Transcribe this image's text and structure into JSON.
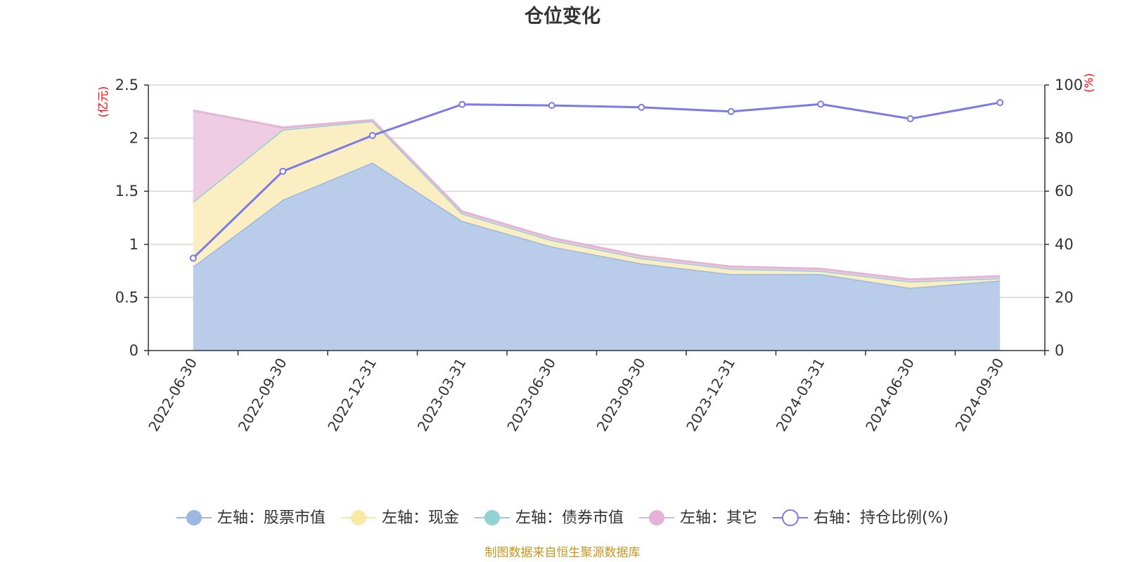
{
  "chart_data": {
    "type": "area",
    "title": "仓位变化",
    "left_axis": {
      "unit": "(亿元)",
      "range": [
        0,
        2.5
      ],
      "ticks": [
        "0",
        "0.5",
        "1",
        "1.5",
        "2",
        "2.5"
      ]
    },
    "right_axis": {
      "unit": "(%)",
      "range": [
        0,
        100
      ],
      "ticks": [
        "0",
        "20",
        "40",
        "60",
        "80",
        "100"
      ]
    },
    "categories": [
      "2022-06-30",
      "2022-09-30",
      "2022-12-31",
      "2023-03-31",
      "2023-06-30",
      "2023-09-30",
      "2023-12-31",
      "2024-03-31",
      "2024-06-30",
      "2024-09-30"
    ],
    "stacked_series": [
      {
        "name": "左轴：股票市值",
        "color": "#9db8e0",
        "fill": "#b9cdea",
        "values": [
          0.79,
          1.42,
          1.77,
          1.22,
          0.98,
          0.82,
          0.72,
          0.72,
          0.59,
          0.66
        ]
      },
      {
        "name": "左轴：现金",
        "color": "#f9e8a6",
        "fill": "#faeec2",
        "values": [
          0.61,
          0.66,
          0.39,
          0.07,
          0.06,
          0.05,
          0.05,
          0.03,
          0.06,
          0.02
        ]
      },
      {
        "name": "左轴：债券市值",
        "color": "#92d2d2",
        "fill": "#b5e1e1",
        "values": [
          0,
          0,
          0,
          0,
          0,
          0,
          0,
          0,
          0,
          0
        ]
      },
      {
        "name": "左轴：其它",
        "color": "#e6b3d6",
        "fill": "#eecde3",
        "values": [
          0.86,
          0.02,
          0.01,
          0.02,
          0.02,
          0.02,
          0.02,
          0.02,
          0.02,
          0.02
        ]
      }
    ],
    "line_series": {
      "name": "右轴：持仓比例(%)",
      "color": "#7b7be8",
      "values": [
        34.8,
        67.5,
        81.0,
        92.7,
        92.3,
        91.6,
        90.0,
        92.8,
        87.3,
        93.4
      ]
    },
    "legend_position": "bottom",
    "grid": true
  },
  "footer": {
    "source": "制图数据来自恒生聚源数据库"
  }
}
